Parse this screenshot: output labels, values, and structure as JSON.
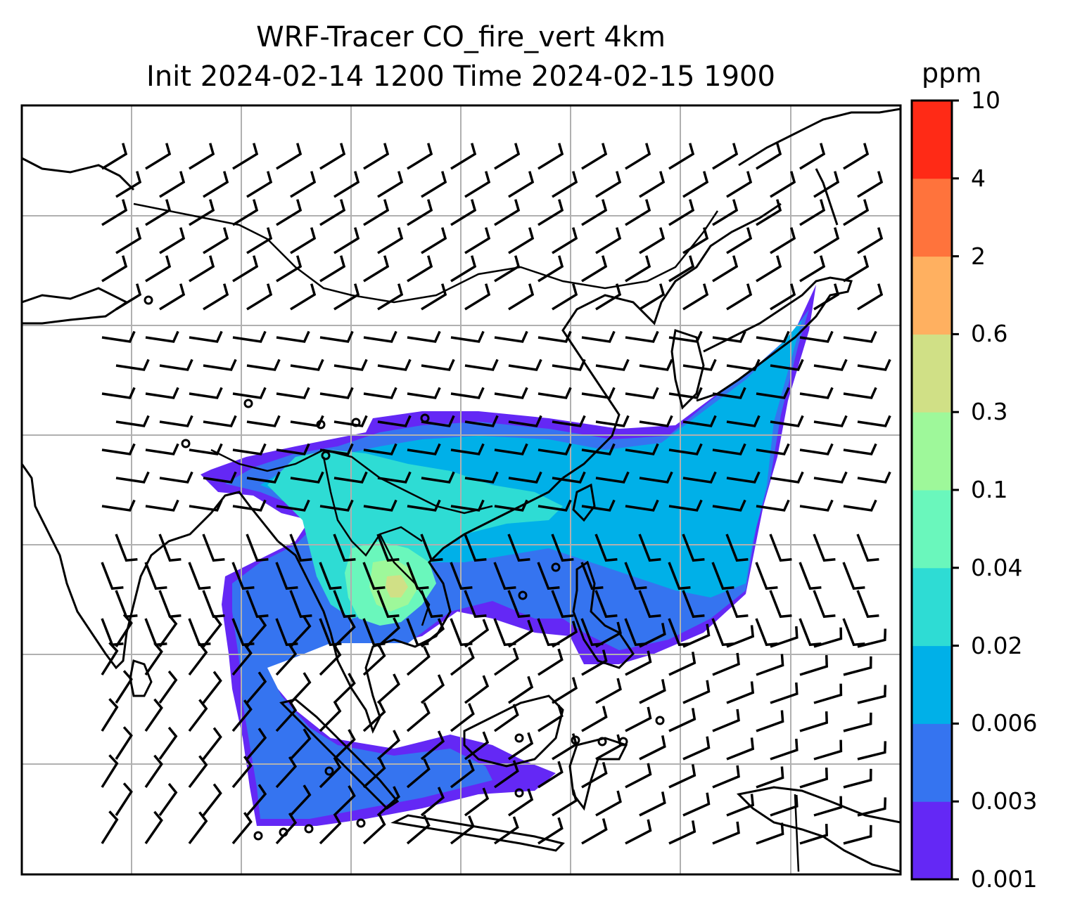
{
  "title_line1": "WRF-Tracer CO_fire_vert 4km",
  "title_line2": "Init 2024-02-14 1200 Time 2024-02-15 1900",
  "colorbar": {
    "units": "ppm",
    "levels": [
      "0.001",
      "0.003",
      "0.006",
      "0.02",
      "0.04",
      "0.1",
      "0.3",
      "0.6",
      "2",
      "4",
      "10"
    ],
    "colors": [
      "#6428f5",
      "#3574f0",
      "#00b0e8",
      "#2edcd4",
      "#6af7bc",
      "#9ef89a",
      "#d0e086",
      "#ffb060",
      "#ff733c",
      "#ff2a16"
    ]
  },
  "map": {
    "gridlines": true,
    "features": [
      "coastlines",
      "country-borders",
      "wind-barbs",
      "co-tracer-concentration"
    ]
  }
}
